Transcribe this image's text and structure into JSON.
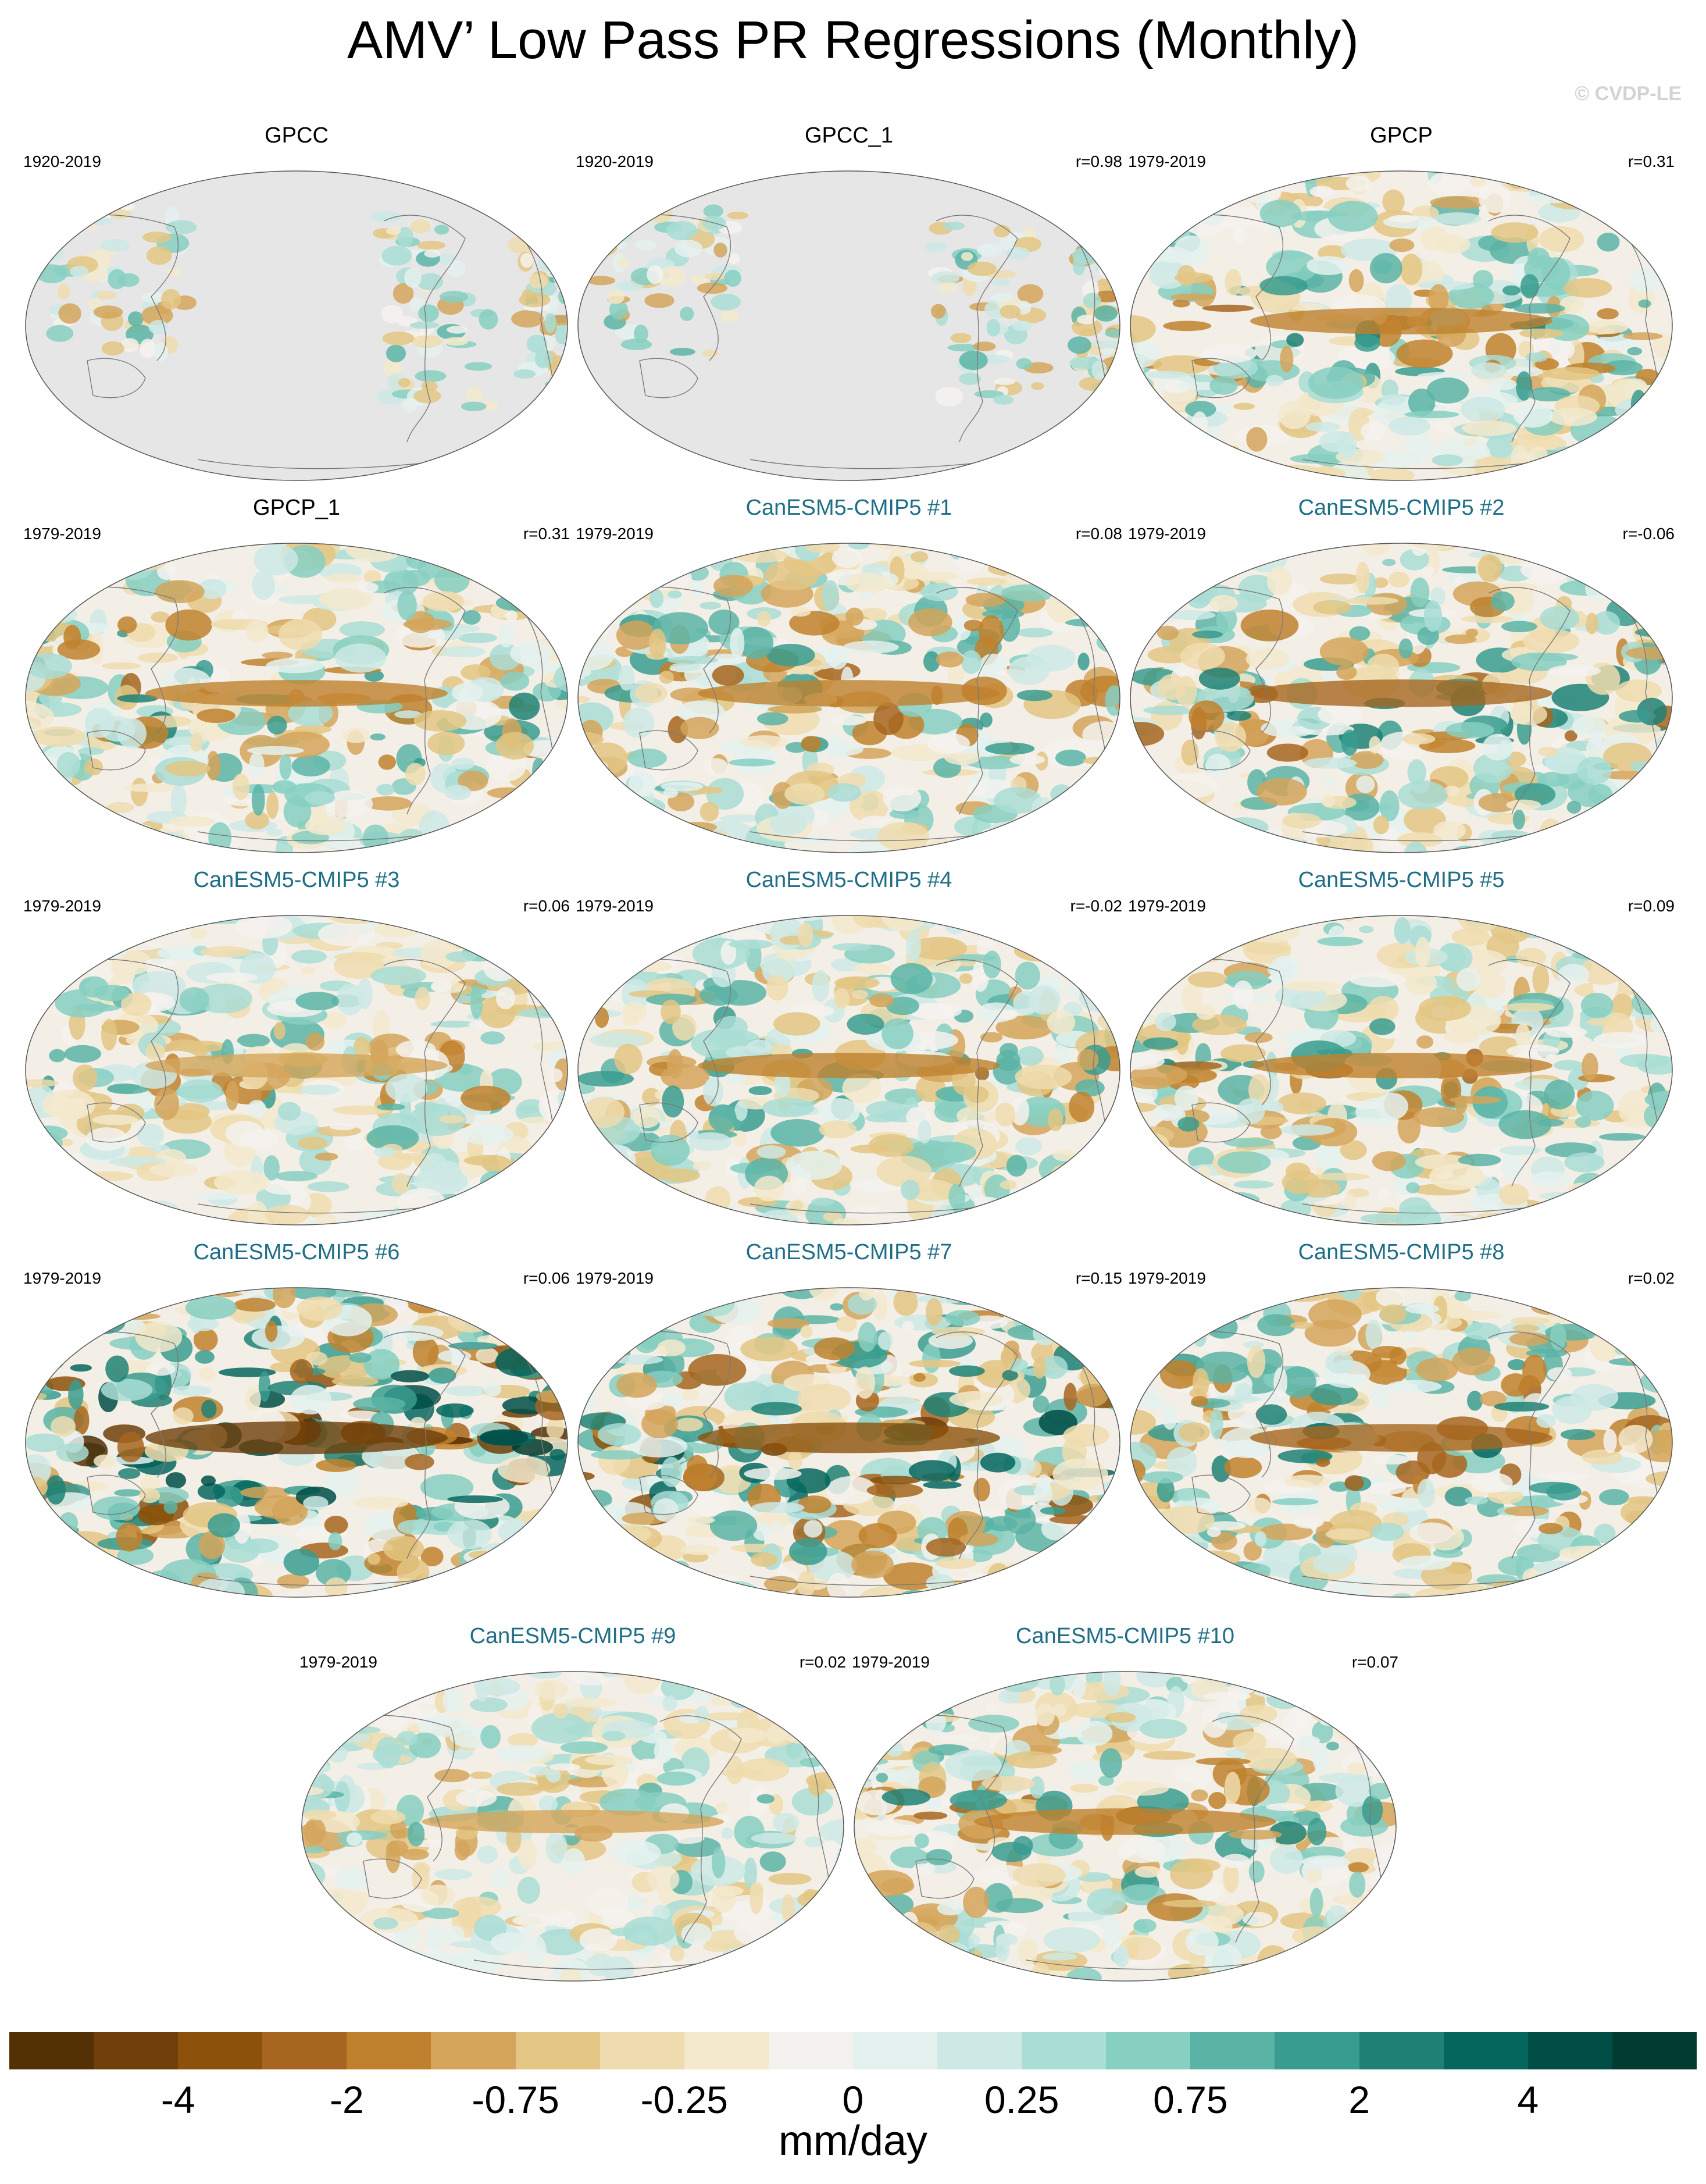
{
  "title": "AMV’ Low Pass PR Regressions (Monthly)",
  "credit": "© CVDP-LE",
  "panels": [
    {
      "title": "GPCC",
      "is_model": false,
      "years": "1920-2019",
      "r": "",
      "land_only": true,
      "intensity": 0.45
    },
    {
      "title": "GPCC_1",
      "is_model": false,
      "years": "1920-2019",
      "r": "r=0.98",
      "land_only": true,
      "intensity": 0.5
    },
    {
      "title": "GPCP",
      "is_model": false,
      "years": "1979-2019",
      "r": "r=0.31",
      "land_only": false,
      "intensity": 0.6
    },
    {
      "title": "GPCP_1",
      "is_model": false,
      "years": "1979-2019",
      "r": "r=0.31",
      "land_only": false,
      "intensity": 0.6
    },
    {
      "title": "CanESM5-CMIP5 #1",
      "is_model": true,
      "years": "1979-2019",
      "r": "r=0.08",
      "land_only": false,
      "intensity": 0.6
    },
    {
      "title": "CanESM5-CMIP5 #2",
      "is_model": true,
      "years": "1979-2019",
      "r": "r=-0.06",
      "land_only": false,
      "intensity": 0.65
    },
    {
      "title": "CanESM5-CMIP5 #3",
      "is_model": true,
      "years": "1979-2019",
      "r": "r=0.06",
      "land_only": false,
      "intensity": 0.5
    },
    {
      "title": "CanESM5-CMIP5 #4",
      "is_model": true,
      "years": "1979-2019",
      "r": "r=-0.02",
      "land_only": false,
      "intensity": 0.55
    },
    {
      "title": "CanESM5-CMIP5 #5",
      "is_model": true,
      "years": "1979-2019",
      "r": "r=0.09",
      "land_only": false,
      "intensity": 0.55
    },
    {
      "title": "CanESM5-CMIP5 #6",
      "is_model": true,
      "years": "1979-2019",
      "r": "r=0.06",
      "land_only": false,
      "intensity": 0.9
    },
    {
      "title": "CanESM5-CMIP5 #7",
      "is_model": true,
      "years": "1979-2019",
      "r": "r=0.15",
      "land_only": false,
      "intensity": 0.8
    },
    {
      "title": "CanESM5-CMIP5 #8",
      "is_model": true,
      "years": "1979-2019",
      "r": "r=0.02",
      "land_only": false,
      "intensity": 0.65
    },
    {
      "title": "CanESM5-CMIP5 #9",
      "is_model": true,
      "years": "1979-2019",
      "r": "r=0.02",
      "land_only": false,
      "intensity": 0.45
    },
    {
      "title": "CanESM5-CMIP5 #10",
      "is_model": true,
      "years": "1979-2019",
      "r": "r=0.07",
      "land_only": false,
      "intensity": 0.6
    }
  ],
  "colorbar": {
    "colors": [
      "#543005",
      "#6e3f0a",
      "#8c510a",
      "#a6661f",
      "#bf812d",
      "#d4a55a",
      "#e3c683",
      "#eedcae",
      "#f3e9cd",
      "#f4f2ee",
      "#e4f1ef",
      "#cce9e5",
      "#a9ddd5",
      "#86cfc1",
      "#5ab4a6",
      "#389c8f",
      "#1f8174",
      "#05665e",
      "#004e46",
      "#003c30"
    ],
    "tick_labels": [
      "-4",
      "-2",
      "-0.75",
      "-0.25",
      "0",
      "0.25",
      "0.75",
      "2",
      "4"
    ],
    "units": "mm/day"
  },
  "theme": {
    "model_title_color": "#1f6e86",
    "land_missing_color": "#e6e6e6",
    "coast_color": "#7a7a7a"
  }
}
